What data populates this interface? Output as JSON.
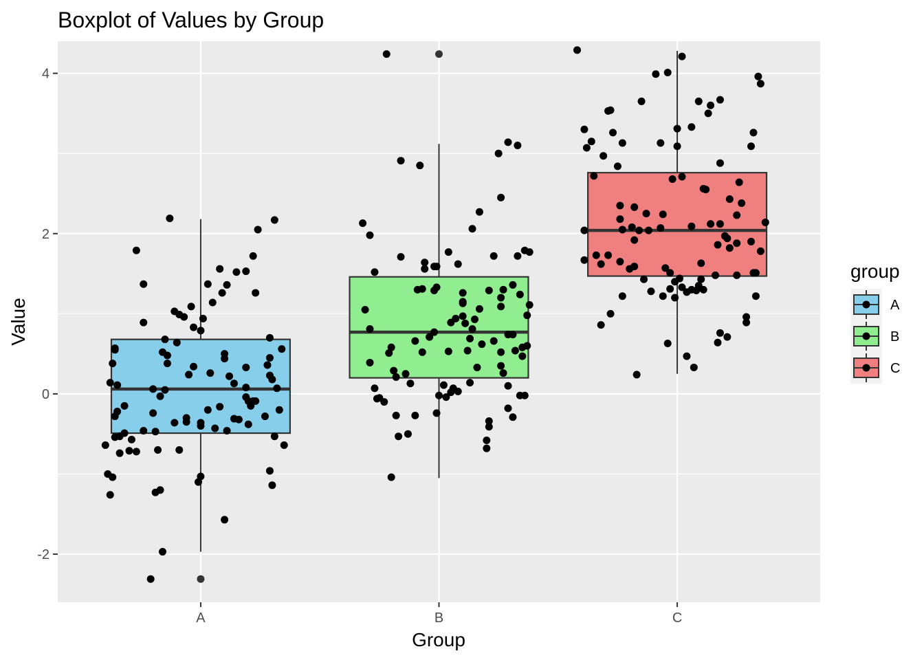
{
  "chart_data": {
    "type": "boxplot",
    "title": "Boxplot of Values by Group",
    "xlabel": "Group",
    "ylabel": "Value",
    "ylim": [
      -2.6,
      4.4
    ],
    "y_ticks": [
      -2,
      0,
      2,
      4
    ],
    "y_tick_labels": [
      "-2",
      "0",
      "2",
      "4"
    ],
    "categories": [
      "A",
      "B",
      "C"
    ],
    "grid": true,
    "legend": {
      "title": "group",
      "position": "right",
      "entries": [
        "A",
        "B",
        "C"
      ]
    },
    "colors": {
      "A": "#87ceeb",
      "B": "#90ee90",
      "C": "#f08080",
      "panel": "#ebebeb",
      "grid": "#ffffff",
      "points": "#000000",
      "box_outline": "#333333"
    },
    "boxes": [
      {
        "group": "A",
        "q1": -0.49,
        "median": 0.06,
        "q3": 0.68,
        "whisker_low": -1.97,
        "whisker_high": 2.18,
        "outliers": [
          -2.31
        ]
      },
      {
        "group": "B",
        "q1": 0.2,
        "median": 0.77,
        "q3": 1.46,
        "whisker_low": -1.05,
        "whisker_high": 3.12,
        "outliers": [
          4.24
        ]
      },
      {
        "group": "C",
        "q1": 1.47,
        "median": 2.04,
        "q3": 2.76,
        "whisker_low": 0.25,
        "whisker_high": 4.28,
        "outliers": []
      }
    ],
    "points": [
      {
        "group": "A",
        "x": [
          0.87,
          0.73,
          0.89,
          0.91,
          0.63,
          0.65,
          1.08,
          1.19,
          0.76,
          1.05,
          0.9,
          0.85,
          0.64,
          0.66,
          0.97,
          0.68,
          1.09,
          1.24,
          0.96,
          1.22,
          1.15,
          0.7,
          1.03,
          1.31,
          0.83,
          1.23,
          1.32,
          1.28,
          1.11,
          0.71,
          1.29,
          0.86,
          0.95,
          0.6,
          0.62,
          0.76,
          0.8,
          1.04,
          0.66,
          1.14,
          1.19,
          1.14,
          0.89,
          1.12,
          0.8,
          0.68,
          1.21,
          1.33,
          1.31,
          0.84,
          0.99,
          1.22,
          0.63,
          1.29,
          0.61,
          0.94,
          0.86,
          0.76,
          1.01,
          0.83,
          1.16,
          0.73,
          1.23,
          1.19,
          0.62,
          1.29,
          1.06,
          1.08,
          1.03,
          0.91,
          1.0,
          1.27,
          1.2,
          1.0,
          1.1,
          1.1,
          0.64,
          1.2,
          1.0,
          0.64,
          1.0,
          1.34,
          1.3,
          0.85,
          0.93,
          0.64,
          1.19,
          1.11,
          0.65,
          0.97,
          0.81,
          1.3,
          0.94,
          0.81,
          1.29,
          0.79,
          1.35,
          0.82,
          1.1,
          0.84
        ],
        "y": [
          2.19,
          1.79,
          1.03,
          0.99,
          0.38,
          0.11,
          1.56,
          1.53,
          0.89,
          1.14,
          0.64,
          0.68,
          -0.28,
          -0.53,
          0.83,
          -0.15,
          1.26,
          2.05,
          1.09,
          1.72,
          1.52,
          -0.71,
          1.37,
          2.17,
          -0.03,
          1.26,
          0.07,
          0.36,
          1.36,
          -0.57,
          0.45,
          0.38,
          0.24,
          -0.64,
          -1.26,
          -0.46,
          -0.24,
          0.26,
          -0.74,
          0.13,
          0.33,
          -0.31,
          -0.36,
          0.22,
          0.06,
          -0.49,
          -0.15,
          -0.2,
          -0.53,
          -1.97,
          -1.1,
          -0.09,
          -1.04,
          0.23,
          -1.0,
          -0.35,
          0.48,
          1.37,
          0.94,
          -1.2,
          -0.32,
          -0.72,
          -0.09,
          -0.04,
          0.14,
          0.7,
          -0.43,
          -0.16,
          -0.2,
          -0.7,
          -1.03,
          -0.28,
          -0.38,
          0.79,
          0.44,
          0.5,
          0.57,
          -0.09,
          -0.4,
          -0.54,
          -0.36,
          0.56,
          0.18,
          0.05,
          0.96,
          0.55,
          0.08,
          -0.46,
          -0.22,
          0.34,
          -1.23,
          -1.14,
          -0.3,
          -0.47,
          -0.96,
          -2.31,
          -0.64,
          -0.7,
          -1.57,
          0.52
        ]
      },
      {
        "group": "B",
        "x": [
          1.78,
          2.29,
          2.14,
          1.84,
          1.92,
          2.33,
          2.26,
          2.08,
          2.25,
          1.68,
          2.36,
          1.69,
          1.98,
          1.99,
          2.17,
          2.04,
          2.38,
          2.34,
          2.27,
          1.94,
          1.94,
          1.98,
          2.31,
          2.1,
          1.93,
          1.71,
          1.91,
          2.23,
          1.96,
          2.1,
          2.26,
          2.23,
          2.37,
          1.73,
          2.04,
          2.1,
          2.15,
          2.29,
          2.02,
          2.29,
          1.98,
          1.71,
          2.14,
          2.13,
          1.73,
          2.07,
          1.99,
          1.79,
          2.12,
          2.37,
          2.21,
          1.96,
          1.81,
          2.06,
          2.26,
          2.36,
          2.26,
          2.05,
          2.1,
          1.71,
          2.35,
          2.11,
          2.35,
          1.75,
          2.33,
          2.18,
          2.13,
          1.87,
          1.82,
          1.93,
          1.74,
          2.31,
          2.29,
          1.77,
          2.05,
          1.88,
          1.9,
          1.84,
          2.38,
          2.32,
          1.99,
          2.34,
          2.21,
          2.08,
          2.27,
          2.21,
          1.82,
          2.0,
          2.17,
          1.86,
          1.9,
          1.8,
          2.31,
          2.16,
          2.26,
          2.03,
          2.2,
          1.8,
          1.83,
          2.2
        ],
        "y": [
          4.24,
          3.14,
          2.06,
          2.91,
          2.85,
          3.1,
          2.45,
          1.62,
          3.0,
          2.13,
          1.79,
          1.05,
          1.29,
          1.59,
          2.27,
          1.77,
          1.11,
          1.24,
          1.3,
          1.56,
          1.64,
          1.59,
          1.36,
          1.15,
          1.31,
          1.98,
          1.3,
          1.72,
          0.71,
          0.97,
          0.52,
          0.66,
          0.6,
          1.52,
          0.53,
          1.26,
          0.93,
          0.74,
          0.11,
          0.1,
          0.77,
          0.81,
          0.81,
          0.69,
          0.07,
          0.94,
          -0.24,
          0.51,
          0.54,
          0.98,
          1.29,
          0.71,
          0.29,
          0.07,
          0.35,
          -0.02,
          1.09,
          0.89,
          1.13,
          0.39,
          0.47,
          0.88,
          0.58,
          -0.05,
          1.72,
          0.62,
          0.14,
          -0.5,
          -0.27,
          0.52,
          -0.06,
          0.74,
          -0.18,
          -0.1,
          0.02,
          0.13,
          -0.27,
          1.71,
          1.77,
          0.54,
          1.33,
          -0.02,
          -0.34,
          0.03,
          0.26,
          -0.41,
          0.21,
          -0.02,
          1.06,
          0.25,
          0.66,
          0.58,
          -0.29,
          0.33,
          1.2,
          -0.04,
          -0.58,
          -1.04,
          -0.53,
          -0.68
        ]
      },
      {
        "group": "C",
        "x": [
          2.58,
          3.35,
          3.31,
          2.96,
          3.09,
          3.18,
          2.72,
          3.14,
          3.13,
          3.32,
          2.61,
          3.26,
          2.73,
          3.0,
          2.93,
          2.64,
          2.62,
          3.18,
          2.69,
          3.12,
          2.98,
          2.75,
          3.02,
          2.82,
          3.27,
          2.87,
          3.11,
          2.93,
          3.22,
          2.76,
          2.77,
          3.18,
          2.84,
          2.76,
          3.06,
          3.25,
          3.14,
          3.31,
          3.1,
          2.94,
          2.81,
          3.21,
          3.37,
          3.17,
          2.88,
          2.82,
          2.97,
          2.71,
          3.01,
          2.95,
          3.25,
          2.97,
          2.61,
          3.09,
          3.32,
          2.68,
          2.61,
          3.35,
          3.1,
          3.02,
          3.2,
          2.66,
          2.86,
          2.99,
          3.22,
          2.8,
          2.99,
          2.76,
          3.25,
          3.33,
          2.77,
          3.33,
          3.06,
          2.82,
          3.29,
          2.89,
          2.68,
          3.21,
          3.18,
          3.04,
          2.94,
          3.11,
          3.17,
          3.08,
          3.04,
          2.96,
          2.72,
          3.29,
          3.16,
          2.83,
          3.34,
          2.91,
          2.71,
          3.02,
          3.06,
          2.85,
          2.77,
          2.65,
          3.0,
          3.07
        ],
        "y": [
          4.29,
          3.87,
          3.09,
          4.01,
          3.65,
          3.67,
          3.54,
          3.6,
          3.5,
          3.26,
          3.3,
          2.64,
          3.26,
          3.31,
          3.13,
          3.15,
          3.07,
          2.88,
          2.97,
          2.55,
          2.68,
          2.84,
          2.71,
          2.33,
          2.38,
          2.25,
          2.56,
          2.07,
          2.43,
          2.35,
          2.05,
          2.12,
          2.04,
          2.18,
          2.09,
          2.23,
          2.12,
          1.9,
          1.63,
          2.24,
          2.08,
          1.94,
          2.14,
          1.86,
          2.04,
          1.92,
          1.51,
          1.73,
          1.44,
          1.57,
          1.88,
          1.31,
          2.04,
          1.35,
          1.51,
          1.62,
          1.67,
          1.78,
          1.43,
          1.33,
          1.97,
          1.73,
          1.43,
          1.4,
          1.82,
          1.56,
          1.2,
          1.65,
          1.48,
          1.51,
          1.22,
          1.22,
          1.3,
          1.59,
          0.96,
          1.28,
          0.86,
          0.71,
          0.76,
          1.27,
          1.22,
          1.3,
          0.64,
          1.29,
          0.47,
          0.63,
          1.0,
          0.89,
          1.48,
          0.24,
          3.96,
          3.99,
          3.53,
          4.21,
          3.33,
          3.65,
          3.13,
          2.72,
          3.09,
          0.33
        ]
      }
    ]
  }
}
